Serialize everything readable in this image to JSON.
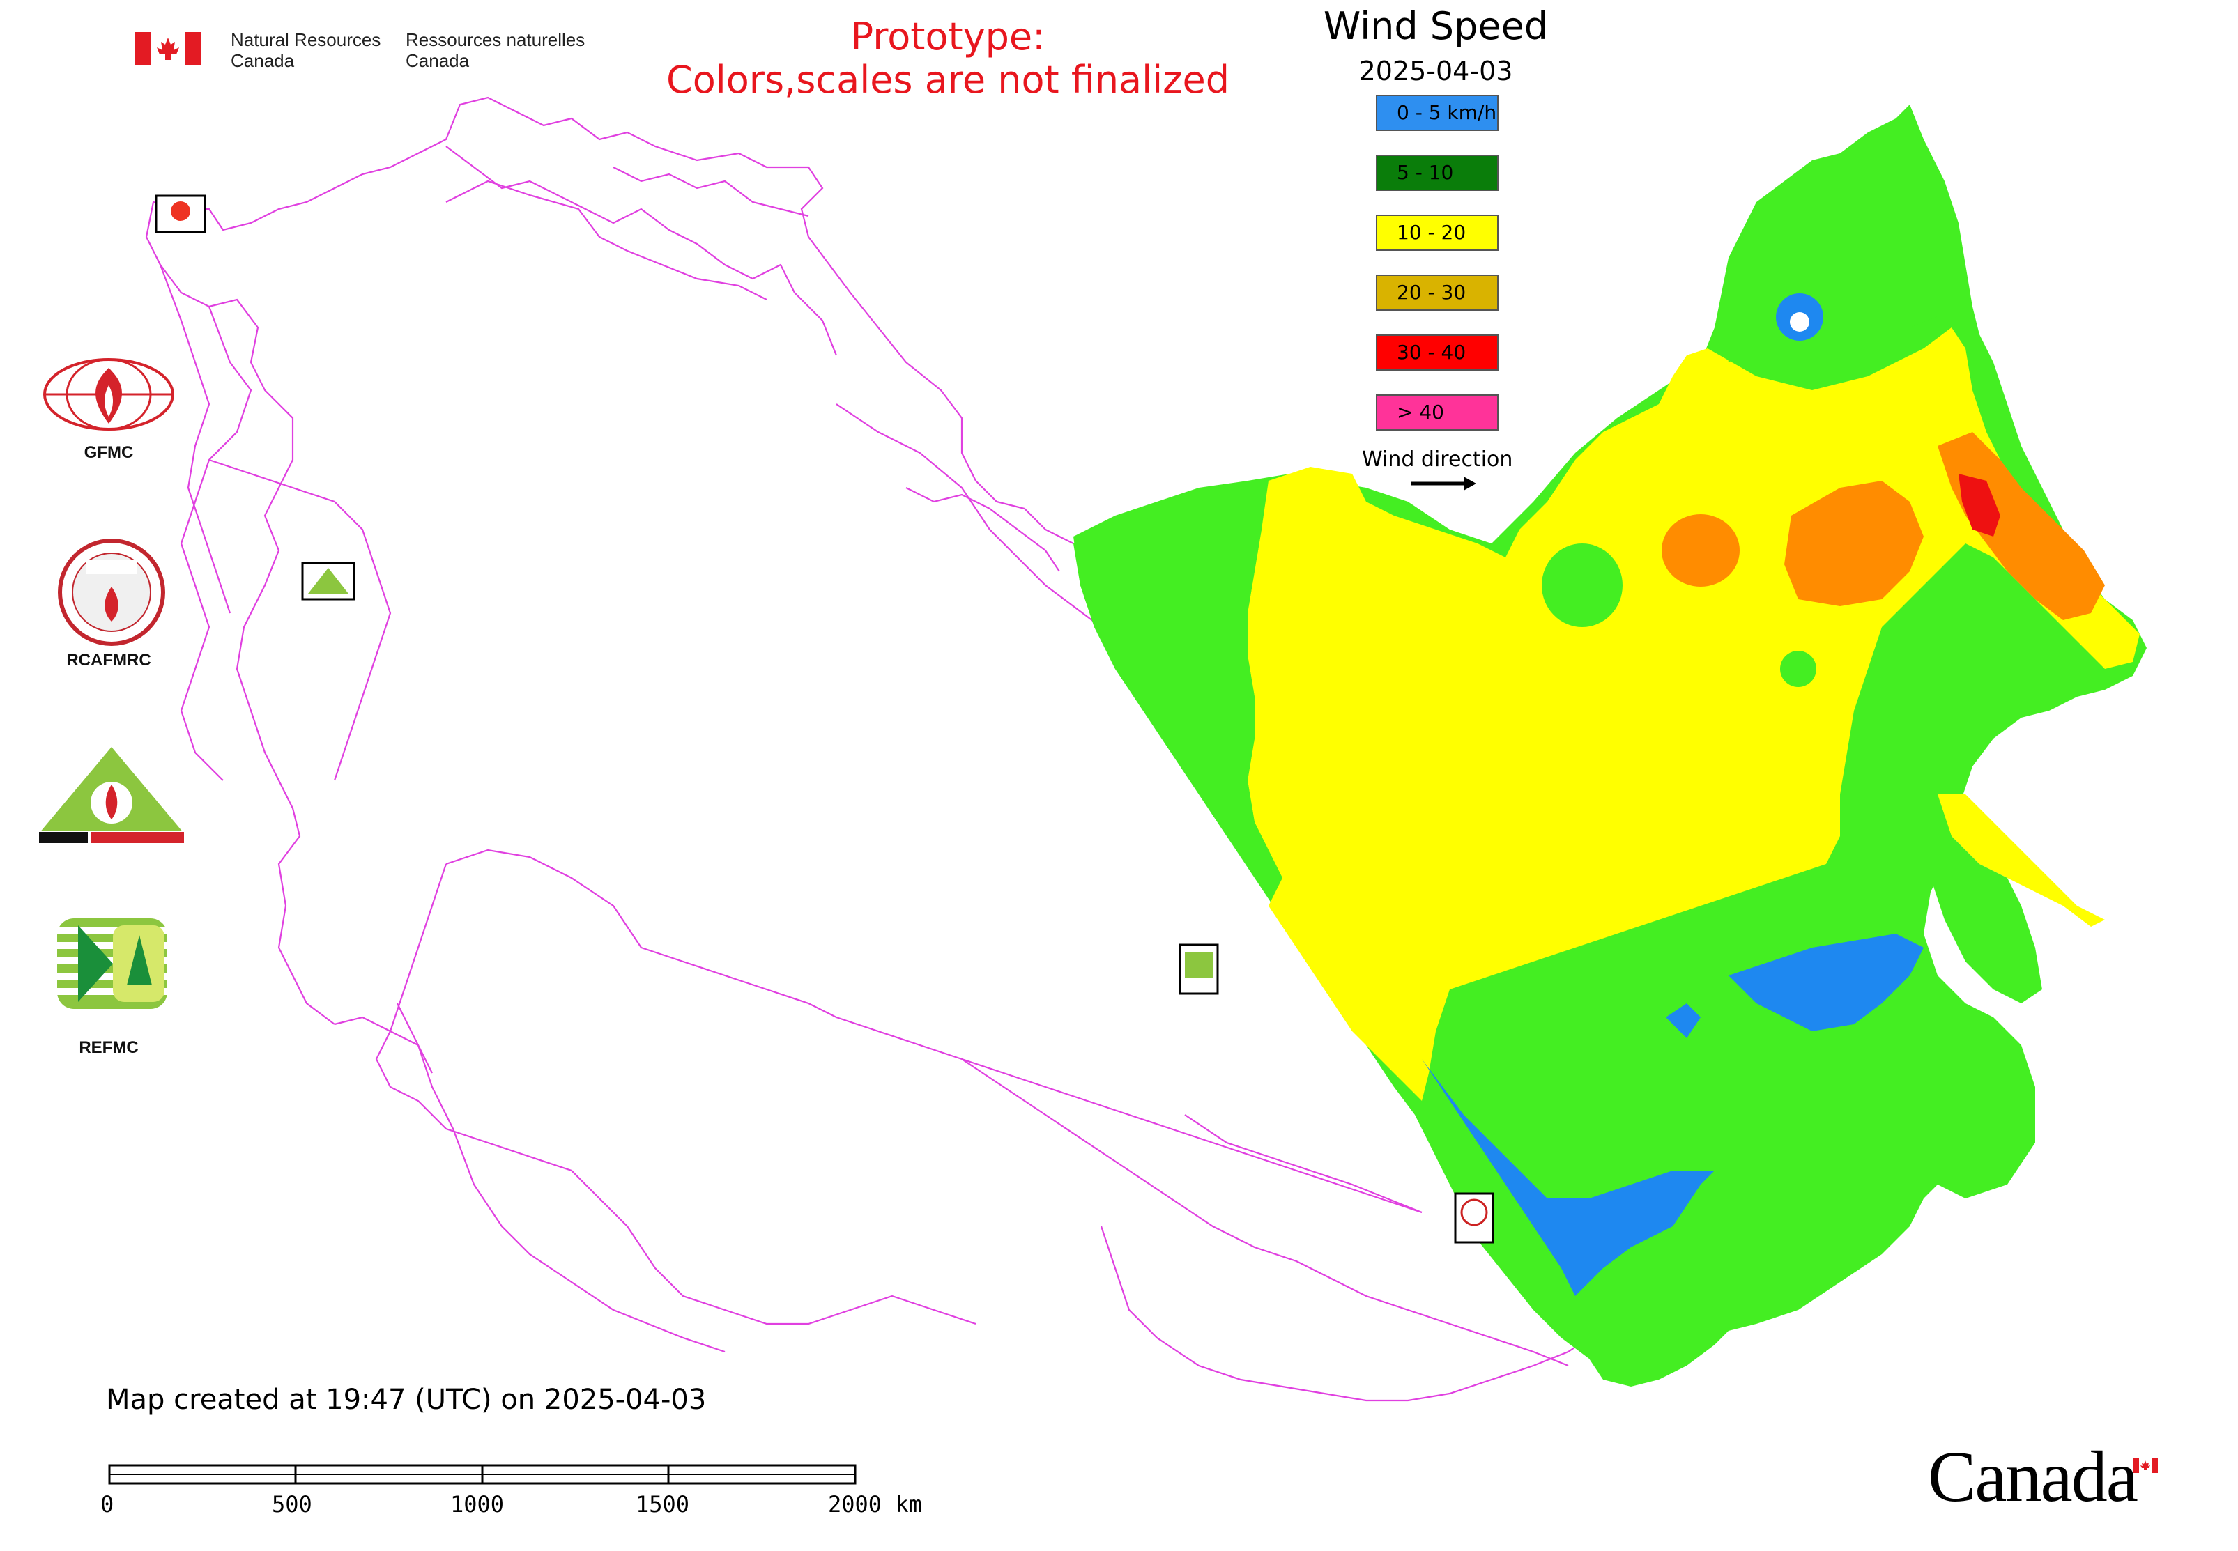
{
  "header": {
    "nrcan_en_1": "Natural Resources",
    "nrcan_en_2": "Canada",
    "nrcan_fr_1": "Ressources naturelles",
    "nrcan_fr_2": "Canada",
    "prototype_line1": "Prototype:",
    "prototype_line2": "Colors,scales are not finalized"
  },
  "title": "Wind Speed",
  "date": "2025-04-03",
  "legend": {
    "items": [
      {
        "label": "0 - 5 km/h",
        "color": "#2e8ff0"
      },
      {
        "label": "5 - 10",
        "color": "#0a7d0a"
      },
      {
        "label": "10 - 20",
        "color": "#ffff00"
      },
      {
        "label": "20 - 30",
        "color": "#d9b300"
      },
      {
        "label": "30 - 40",
        "color": "#ff0000"
      },
      {
        "label": "> 40",
        "color": "#ff3399"
      }
    ],
    "wind_direction_label": "Wind direction"
  },
  "map_colors": {
    "border": "#e040e0",
    "calm": "#1e88f0",
    "light": "#44ee22",
    "moderate": "#ffff00",
    "strong": "#ff8c00",
    "very_strong": "#ee1111"
  },
  "organizations": [
    {
      "label": "GFMC",
      "icon": "gfmc-logo"
    },
    {
      "label": "RCAFMRC",
      "icon": "rcafmrc-logo"
    },
    {
      "label": "",
      "icon": "reefmc-logo"
    },
    {
      "label": "REFMC",
      "icon": "refmc-logo"
    }
  ],
  "footer": {
    "created": "Map created at 19:47 (UTC) on 2025-04-03",
    "scale_labels": [
      "0",
      "500",
      "1000",
      "1500",
      "2000 km"
    ],
    "canada_wordmark": "Canada"
  }
}
